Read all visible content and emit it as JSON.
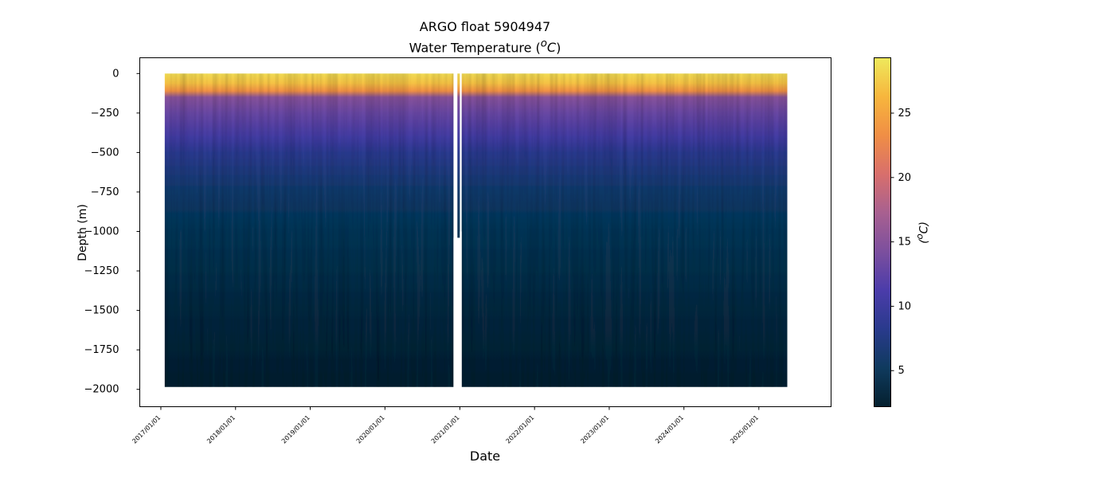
{
  "chart_data": {
    "type": "heatmap",
    "title": "ARGO float 5904947",
    "subtitle": "Water Temperature (⁰C)",
    "subtitle_parts": [
      "Water Temperature (",
      "o",
      "C",
      ")"
    ],
    "xlabel": "Date",
    "ylabel": "Depth (m)",
    "colorbar_label_parts": [
      "(",
      "o",
      "C",
      ")"
    ],
    "x_range": [
      "2016-09-20",
      "2025-12-20"
    ],
    "y_range": [
      -2110,
      100
    ],
    "x_ticks": [
      "2017/01/01",
      "2018/01/01",
      "2019/01/01",
      "2020/01/01",
      "2021/01/01",
      "2022/01/01",
      "2023/01/01",
      "2024/01/01",
      "2025/01/01"
    ],
    "y_ticks": [
      0,
      -250,
      -500,
      -750,
      -1000,
      -1250,
      -1500,
      -1750,
      -2000
    ],
    "data_x_start": "2017-01-20",
    "data_x_end": "2025-05-20",
    "max_depth_typical": -1985,
    "gaps": [
      {
        "from": "2020-12-01",
        "to": "2020-12-20",
        "max_depth": -1040
      },
      {
        "from": "2021-01-01",
        "to": "2021-01-10",
        "max_depth": -1000
      }
    ],
    "profile_truncated": [
      {
        "from": "2020-12-20",
        "to": "2021-01-01",
        "max_depth": -1040
      }
    ],
    "temperature_profile": [
      {
        "depth": 0,
        "temp": 28.5
      },
      {
        "depth": -60,
        "temp": 27
      },
      {
        "depth": -110,
        "temp": 23.5
      },
      {
        "depth": -150,
        "temp": 15
      },
      {
        "depth": -250,
        "temp": 13
      },
      {
        "depth": -400,
        "temp": 10.5
      },
      {
        "depth": -500,
        "temp": 8.5
      },
      {
        "depth": -750,
        "temp": 6
      },
      {
        "depth": -1000,
        "temp": 4.7
      },
      {
        "depth": -1250,
        "temp": 4
      },
      {
        "depth": -1500,
        "temp": 3.3
      },
      {
        "depth": -1750,
        "temp": 2.8
      },
      {
        "depth": -2000,
        "temp": 2.3
      }
    ],
    "colorbar": {
      "colormap": "thermal",
      "vmin": 2.2,
      "vmax": 29.3,
      "ticks": [
        5,
        10,
        15,
        20,
        25
      ],
      "colors": [
        "#04202e",
        "#0f3a5e",
        "#293a8c",
        "#4b3caa",
        "#7c4f9e",
        "#a86090",
        "#d86f6c",
        "#f08e45",
        "#f7b63d",
        "#eee95c"
      ]
    },
    "grid": false
  }
}
